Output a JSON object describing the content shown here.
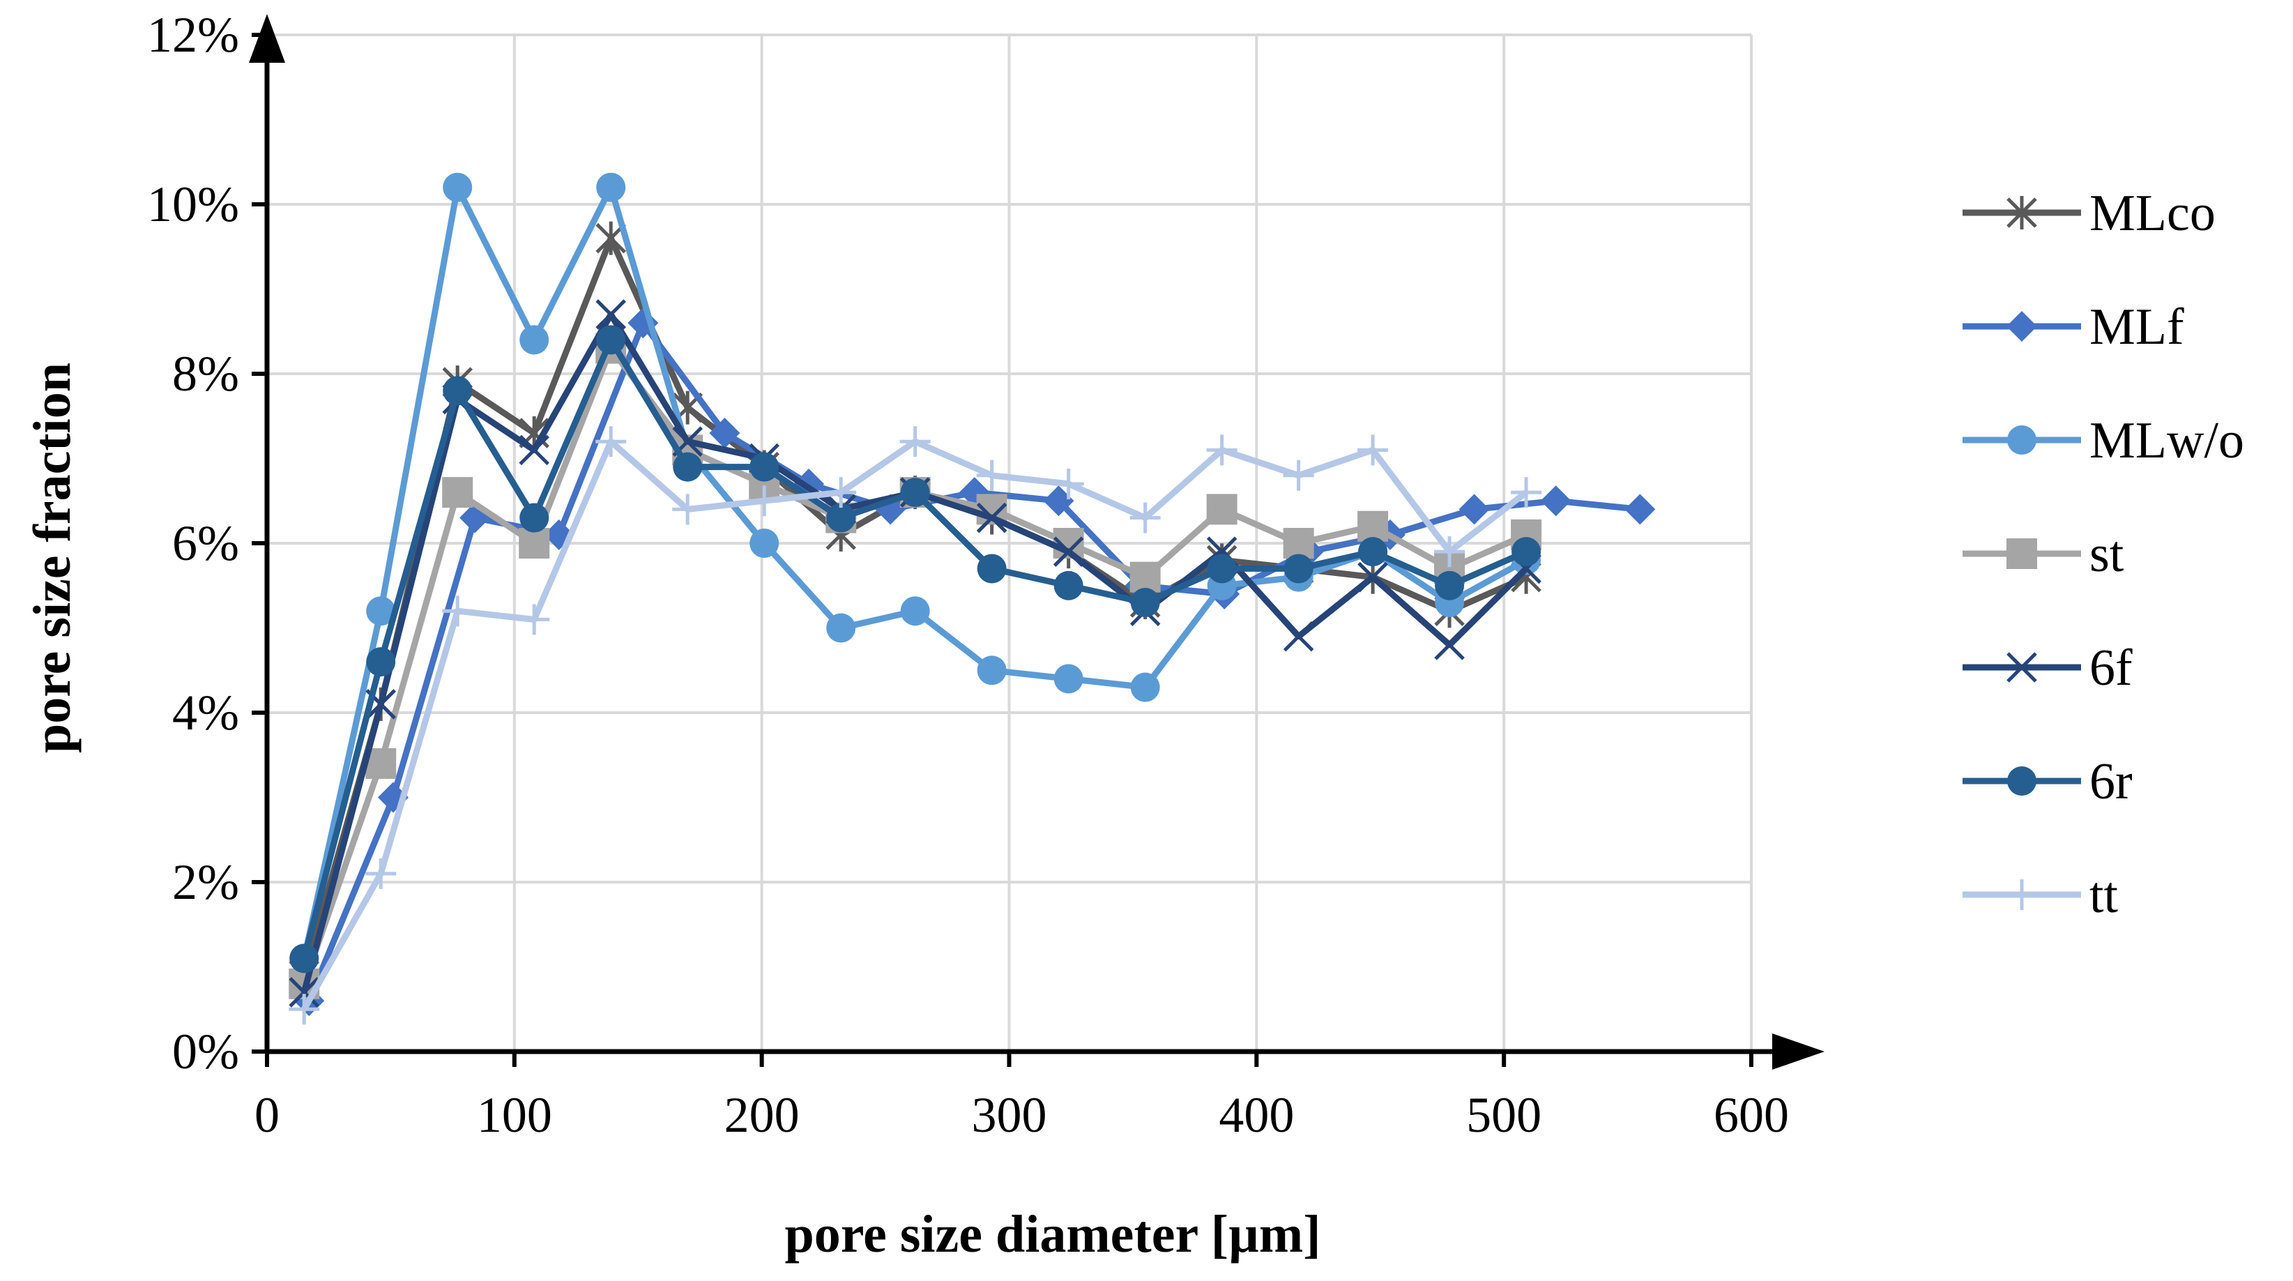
{
  "chart_data": {
    "type": "line",
    "title": "",
    "xlabel": "pore size diameter [µm]",
    "ylabel": "pore size fraction",
    "xlim": [
      0,
      600
    ],
    "ylim": [
      0,
      0.12
    ],
    "x_ticks": [
      0,
      100,
      200,
      300,
      400,
      500,
      600
    ],
    "x_tick_labels": [
      "0",
      "100",
      "200",
      "300",
      "400",
      "500",
      "600"
    ],
    "y_ticks": [
      0,
      0.02,
      0.04,
      0.06,
      0.08,
      0.1,
      0.12
    ],
    "y_tick_labels": [
      "0%",
      "2%",
      "4%",
      "6%",
      "8%",
      "10%",
      "12%"
    ],
    "grid": true,
    "legend_position": "right",
    "series": [
      {
        "name": "MLco",
        "color": "#595959",
        "marker": "asterisk",
        "x": [
          15,
          46,
          77,
          108,
          139,
          170,
          201,
          232,
          262,
          293,
          324,
          355,
          386,
          417,
          447,
          478,
          509
        ],
        "y": [
          0.009,
          0.041,
          0.079,
          0.073,
          0.096,
          0.076,
          0.069,
          0.061,
          0.066,
          0.063,
          0.059,
          0.053,
          0.058,
          0.057,
          0.056,
          0.052,
          0.056
        ]
      },
      {
        "name": "MLf",
        "color": "#4472C4",
        "marker": "diamond",
        "x": [
          17,
          51,
          84,
          118,
          152,
          185,
          219,
          252,
          286,
          320,
          353,
          387,
          421,
          454,
          488,
          521,
          555
        ],
        "y": [
          0.006,
          0.03,
          0.063,
          0.061,
          0.086,
          0.073,
          0.067,
          0.064,
          0.066,
          0.065,
          0.055,
          0.054,
          0.059,
          0.061,
          0.064,
          0.065,
          0.064
        ]
      },
      {
        "name": "MLw/o",
        "color": "#5B9BD5",
        "marker": "circle",
        "x": [
          15,
          46,
          77,
          108,
          139,
          170,
          201,
          232,
          262,
          293,
          324,
          355,
          386,
          417,
          447,
          478,
          509
        ],
        "y": [
          0.011,
          0.052,
          0.102,
          0.084,
          0.102,
          0.071,
          0.06,
          0.05,
          0.052,
          0.045,
          0.044,
          0.043,
          0.055,
          0.056,
          0.059,
          0.053,
          0.058
        ]
      },
      {
        "name": "st",
        "color": "#A5A5A5",
        "marker": "square",
        "x": [
          15,
          46,
          77,
          108,
          139,
          170,
          201,
          232,
          262,
          293,
          324,
          355,
          386,
          417,
          447,
          478,
          509
        ],
        "y": [
          0.008,
          0.034,
          0.066,
          0.06,
          0.083,
          0.071,
          0.067,
          0.063,
          0.066,
          0.064,
          0.06,
          0.056,
          0.064,
          0.06,
          0.062,
          0.057,
          0.061
        ]
      },
      {
        "name": "6f",
        "color": "#264478",
        "marker": "x",
        "x": [
          15,
          46,
          77,
          108,
          139,
          170,
          201,
          232,
          262,
          293,
          324,
          355,
          386,
          417,
          447,
          478,
          509
        ],
        "y": [
          0.007,
          0.041,
          0.077,
          0.071,
          0.087,
          0.072,
          0.07,
          0.064,
          0.066,
          0.063,
          0.059,
          0.052,
          0.059,
          0.049,
          0.056,
          0.048,
          0.057
        ]
      },
      {
        "name": "6r",
        "color": "#255E91",
        "marker": "circle",
        "x": [
          15,
          46,
          77,
          108,
          139,
          170,
          201,
          232,
          262,
          293,
          324,
          355,
          386,
          417,
          447,
          478,
          509
        ],
        "y": [
          0.011,
          0.046,
          0.078,
          0.063,
          0.084,
          0.069,
          0.069,
          0.063,
          0.066,
          0.057,
          0.055,
          0.053,
          0.057,
          0.057,
          0.059,
          0.055,
          0.059
        ]
      },
      {
        "name": "tt",
        "color": "#B4C7E7",
        "marker": "plus",
        "x": [
          15,
          46,
          77,
          108,
          139,
          170,
          201,
          232,
          262,
          293,
          324,
          355,
          386,
          417,
          447,
          478,
          509
        ],
        "y": [
          0.005,
          0.021,
          0.052,
          0.051,
          0.072,
          0.064,
          0.065,
          0.066,
          0.072,
          0.068,
          0.067,
          0.063,
          0.071,
          0.068,
          0.071,
          0.059,
          0.066
        ]
      }
    ]
  }
}
